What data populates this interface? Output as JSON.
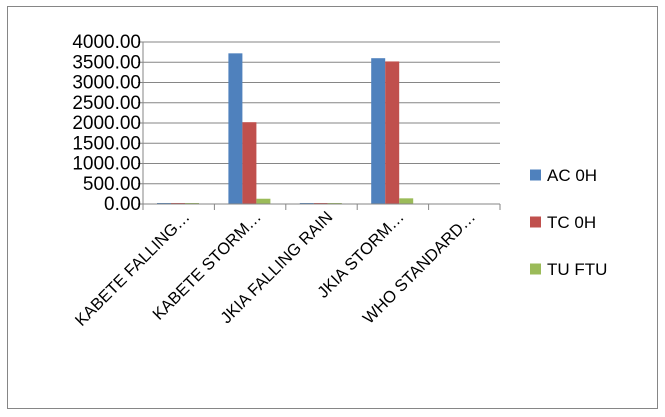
{
  "chart_data": {
    "type": "bar",
    "title": "",
    "xlabel": "",
    "ylabel": "",
    "categories": [
      "KABETE FALLING…",
      "KABETE STORM…",
      "JKIA FALLING RAIN",
      "JKIA STORM…",
      "WHO STANDARD…"
    ],
    "series": [
      {
        "name": "AC 0H",
        "color": "#4F81BD",
        "values": [
          18,
          3720,
          5,
          3600,
          0
        ]
      },
      {
        "name": "TC 0H",
        "color": "#C0504D",
        "values": [
          20,
          2020,
          5,
          3520,
          0
        ]
      },
      {
        "name": "TU FTU",
        "color": "#9BBB59",
        "values": [
          3,
          130,
          2,
          140,
          0
        ]
      }
    ],
    "ylim": [
      0,
      4000
    ],
    "yticks": [
      "0.00",
      "500.00",
      "1000.00",
      "1500.00",
      "2000.00",
      "2500.00",
      "3000.00",
      "3500.00",
      "4000.00"
    ],
    "grid": true,
    "legend_position": "right"
  }
}
